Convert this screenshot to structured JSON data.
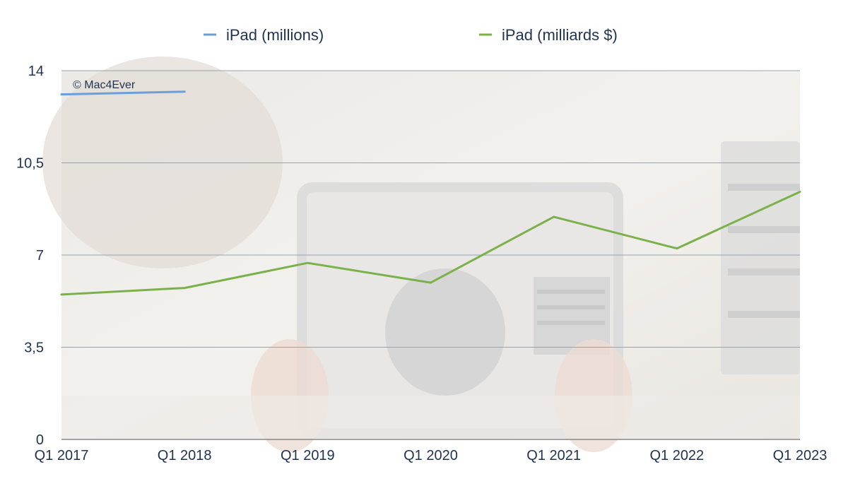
{
  "chart_data": {
    "type": "line",
    "categories": [
      "Q1 2017",
      "Q1 2018",
      "Q1 2019",
      "Q1 2020",
      "Q1 2021",
      "Q1 2022",
      "Q1 2023"
    ],
    "series": [
      {
        "name": "iPad (millions)",
        "color": "#6a9fdc",
        "values": [
          13.1,
          13.2,
          null,
          null,
          null,
          null,
          null
        ]
      },
      {
        "name": "iPad (milliards $)",
        "color": "#7bb14a",
        "values": [
          5.5,
          5.75,
          6.7,
          5.95,
          8.45,
          7.25,
          9.4
        ]
      }
    ],
    "y_ticks": [
      "0",
      "3,5",
      "7",
      "10,5",
      "14"
    ],
    "ylim": [
      0,
      14
    ],
    "grid": true,
    "legend": "top",
    "annotation": "© Mac4Ever"
  }
}
